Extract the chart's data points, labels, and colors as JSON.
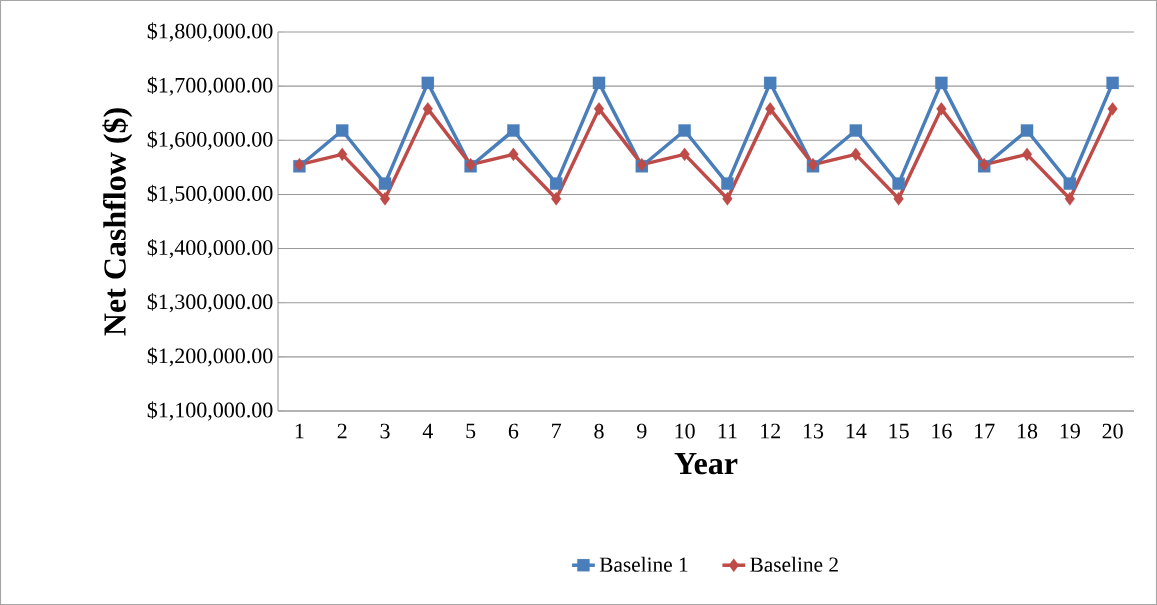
{
  "chart_data": {
    "type": "line",
    "xlabel": "Year",
    "ylabel": "Net Cashflow ($)",
    "categories": [
      "1",
      "2",
      "3",
      "4",
      "5",
      "6",
      "7",
      "8",
      "9",
      "10",
      "11",
      "12",
      "13",
      "14",
      "15",
      "16",
      "17",
      "18",
      "19",
      "20"
    ],
    "series": [
      {
        "name": "Baseline 1",
        "color": "#4a7ebb",
        "marker": "square",
        "values": [
          1552000,
          1618000,
          1520000,
          1706000,
          1552000,
          1618000,
          1520000,
          1706000,
          1552000,
          1618000,
          1520000,
          1706000,
          1552000,
          1618000,
          1520000,
          1706000,
          1552000,
          1618000,
          1520000,
          1706000
        ]
      },
      {
        "name": "Baseline 2",
        "color": "#be4b48",
        "marker": "diamond",
        "values": [
          1555000,
          1574000,
          1492000,
          1658000,
          1555000,
          1574000,
          1492000,
          1658000,
          1555000,
          1574000,
          1492000,
          1658000,
          1555000,
          1574000,
          1492000,
          1658000,
          1555000,
          1574000,
          1492000,
          1658000
        ]
      }
    ],
    "ylim": [
      1100000,
      1800000
    ],
    "yticks": [
      {
        "value": 1100000,
        "label": "$1,100,000.00"
      },
      {
        "value": 1200000,
        "label": "$1,200,000.00"
      },
      {
        "value": 1300000,
        "label": "$1,300,000.00"
      },
      {
        "value": 1400000,
        "label": "$1,400,000.00"
      },
      {
        "value": 1500000,
        "label": "$1,500,000.00"
      },
      {
        "value": 1600000,
        "label": "$1,600,000.00"
      },
      {
        "value": 1700000,
        "label": "$1,700,000.00"
      },
      {
        "value": 1800000,
        "label": "$1,800,000.00"
      }
    ],
    "grid": "y",
    "legend": "bottom",
    "line_style": "solid"
  }
}
